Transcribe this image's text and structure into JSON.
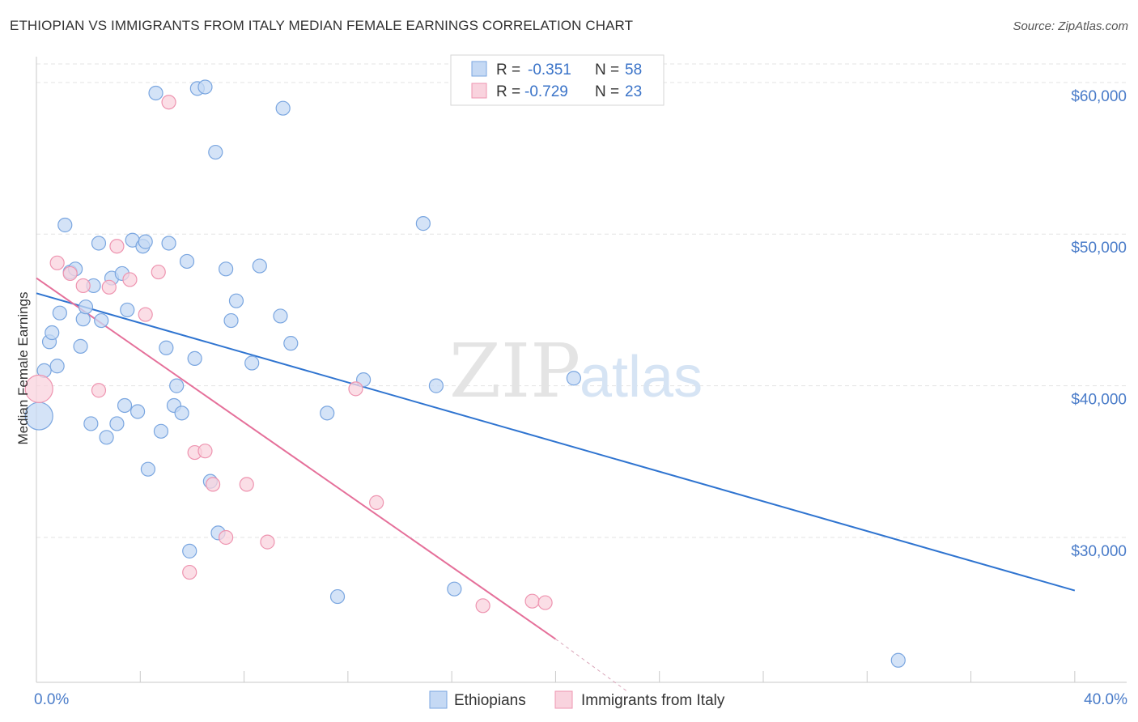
{
  "header": {
    "title": "ETHIOPIAN VS IMMIGRANTS FROM ITALY MEDIAN FEMALE EARNINGS CORRELATION CHART",
    "source": "Source: ZipAtlas.com"
  },
  "watermark": {
    "zip": "ZIP",
    "atlas": "atlas"
  },
  "colors": {
    "blue_fill": "#c5d9f4",
    "blue_stroke": "#7aa6e0",
    "blue_line": "#2f74d0",
    "pink_fill": "#f9d3de",
    "pink_stroke": "#ee94b0",
    "pink_line": "#e5709a",
    "grid": "#e3e3e3",
    "axis_text": "#4a7cc9"
  },
  "chart_data": {
    "type": "scatter",
    "title": "ETHIOPIAN VS IMMIGRANTS FROM ITALY MEDIAN FEMALE EARNINGS CORRELATION CHART",
    "xlabel": "",
    "ylabel": "Median Female Earnings",
    "xlim": [
      0,
      42
    ],
    "ylim": [
      20500,
      61700
    ],
    "x_tick_labels": [
      {
        "value": 0,
        "label": "0.0%"
      },
      {
        "value": 40,
        "label": "40.0%"
      }
    ],
    "y_ticks": [
      {
        "value": 30000,
        "label": "$30,000"
      },
      {
        "value": 40000,
        "label": "$40,000"
      },
      {
        "value": 50000,
        "label": "$50,000"
      },
      {
        "value": 60000,
        "label": "$60,000"
      }
    ],
    "legend": {
      "position": "top-center",
      "entries": [
        {
          "r_label": "R =",
          "r_value": "-0.351",
          "n_label": "N =",
          "n_value": "58"
        },
        {
          "r_label": "R =",
          "r_value": "-0.729",
          "n_label": "N =",
          "n_value": "23"
        }
      ]
    },
    "series": [
      {
        "name": "Ethiopians",
        "color": "#c5d9f4",
        "points": [
          [
            0.1,
            38000
          ],
          [
            0.3,
            41000
          ],
          [
            0.5,
            42900
          ],
          [
            0.6,
            43500
          ],
          [
            0.8,
            41300
          ],
          [
            0.9,
            44800
          ],
          [
            1.1,
            50600
          ],
          [
            1.3,
            47500
          ],
          [
            1.5,
            47700
          ],
          [
            1.7,
            42600
          ],
          [
            1.8,
            44400
          ],
          [
            1.9,
            45200
          ],
          [
            2.1,
            37500
          ],
          [
            2.2,
            46600
          ],
          [
            2.4,
            49400
          ],
          [
            2.5,
            44300
          ],
          [
            2.7,
            36600
          ],
          [
            2.9,
            47100
          ],
          [
            3.1,
            37500
          ],
          [
            3.3,
            47400
          ],
          [
            3.4,
            38700
          ],
          [
            3.5,
            45000
          ],
          [
            3.7,
            49600
          ],
          [
            3.9,
            38300
          ],
          [
            4.1,
            49200
          ],
          [
            4.2,
            49500
          ],
          [
            4.3,
            34500
          ],
          [
            4.6,
            59300
          ],
          [
            4.8,
            37000
          ],
          [
            5.0,
            42500
          ],
          [
            5.1,
            49400
          ],
          [
            5.3,
            38700
          ],
          [
            5.4,
            40000
          ],
          [
            5.6,
            38200
          ],
          [
            5.8,
            48200
          ],
          [
            5.9,
            29100
          ],
          [
            6.1,
            41800
          ],
          [
            6.2,
            59600
          ],
          [
            6.5,
            59700
          ],
          [
            6.7,
            33700
          ],
          [
            6.9,
            55400
          ],
          [
            7.0,
            30300
          ],
          [
            7.3,
            47700
          ],
          [
            7.5,
            44300
          ],
          [
            7.7,
            45600
          ],
          [
            8.3,
            41500
          ],
          [
            8.6,
            47900
          ],
          [
            9.4,
            44600
          ],
          [
            9.5,
            58300
          ],
          [
            9.8,
            42800
          ],
          [
            11.2,
            38200
          ],
          [
            11.6,
            26100
          ],
          [
            12.6,
            40400
          ],
          [
            14.9,
            50700
          ],
          [
            15.4,
            40000
          ],
          [
            16.1,
            26600
          ],
          [
            20.7,
            40500
          ],
          [
            33.2,
            21900
          ]
        ]
      },
      {
        "name": "Immigrants from Italy",
        "color": "#f9d3de",
        "points": [
          [
            0.1,
            39800
          ],
          [
            0.8,
            48100
          ],
          [
            1.3,
            47400
          ],
          [
            1.8,
            46600
          ],
          [
            2.4,
            39700
          ],
          [
            2.8,
            46500
          ],
          [
            3.1,
            49200
          ],
          [
            3.6,
            47000
          ],
          [
            4.2,
            44700
          ],
          [
            4.7,
            47500
          ],
          [
            5.1,
            58700
          ],
          [
            5.9,
            27700
          ],
          [
            6.1,
            35600
          ],
          [
            6.5,
            35700
          ],
          [
            6.8,
            33500
          ],
          [
            7.3,
            30000
          ],
          [
            8.1,
            33500
          ],
          [
            8.9,
            29700
          ],
          [
            12.3,
            39800
          ],
          [
            13.1,
            32300
          ],
          [
            17.2,
            25500
          ],
          [
            19.1,
            25800
          ],
          [
            19.6,
            25700
          ]
        ]
      }
    ],
    "trend_lines": [
      {
        "series": "Ethiopians",
        "x": [
          0,
          40
        ],
        "y": [
          46100,
          26500
        ]
      },
      {
        "series": "Immigrants from Italy",
        "x": [
          0,
          20
        ],
        "y": [
          47100,
          23300
        ],
        "dashed_extension_to": [
          22.8,
          19800
        ]
      }
    ]
  }
}
